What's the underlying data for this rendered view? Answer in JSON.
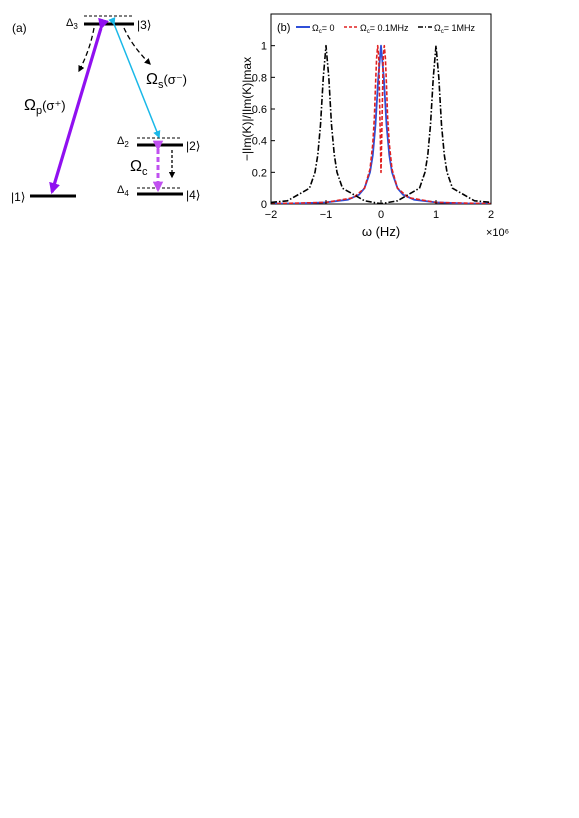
{
  "panel_a": {
    "label": "(a)",
    "levels": {
      "l1": "|1⟩",
      "l2": "|2⟩",
      "l3": "|3⟩",
      "l4": "|4⟩"
    },
    "detunings": {
      "d2": "Δ",
      "d2_sub": "2",
      "d3": "Δ",
      "d3_sub": "3",
      "d4": "Δ",
      "d4_sub": "4"
    },
    "fields": {
      "probe": "Ω",
      "probe_sub": "p",
      "probe_pol": "(σ⁺)",
      "signal": "Ω",
      "signal_sub": "s",
      "signal_pol": "(σ⁻)",
      "control": "Ω",
      "control_sub": "c"
    },
    "colors": {
      "probe": "#9010f0",
      "signal": "#1ab8e8",
      "control": "#c050f0"
    }
  },
  "panel_b": {
    "label": "(b)",
    "xlabel": "ω (Hz)",
    "ylabel": "−|Im(K)|/|Im(K)|max",
    "x_multiplier": "×10⁶",
    "xticks": [
      "−2",
      "−1",
      "0",
      "1",
      "2"
    ],
    "yticks": [
      "0",
      "0.2",
      "0.4",
      "0.6",
      "0.8",
      "1"
    ],
    "legend": [
      {
        "sym": "Ω",
        "sub": "c",
        "value": "= 0"
      },
      {
        "sym": "Ω",
        "sub": "c",
        "value": "= 0.1MHz"
      },
      {
        "sym": "Ω",
        "sub": "c",
        "value": "= 1MHz"
      }
    ]
  },
  "chart_data": {
    "type": "line",
    "xlabel": "ω (Hz)",
    "ylabel": "−|Im(K)|/|Im(K)|max",
    "xlim": [
      -2,
      2
    ],
    "ylim": [
      0,
      1.2
    ],
    "grid": false,
    "legend_position": "top",
    "x_scale_note": "×10⁶",
    "series": [
      {
        "name": "Ωc = 0",
        "color": "#2f4fd8",
        "dash": "solid",
        "x": [
          -2,
          -1.5,
          -1,
          -0.6,
          -0.4,
          -0.3,
          -0.2,
          -0.15,
          -0.1,
          -0.05,
          0,
          0.05,
          0.1,
          0.15,
          0.2,
          0.3,
          0.4,
          0.6,
          1,
          1.5,
          2
        ],
        "y": [
          0.002,
          0.004,
          0.01,
          0.027,
          0.059,
          0.1,
          0.2,
          0.308,
          0.5,
          0.8,
          1,
          0.8,
          0.5,
          0.308,
          0.2,
          0.1,
          0.059,
          0.027,
          0.01,
          0.004,
          0.002
        ]
      },
      {
        "name": "Ωc = 0.1MHz",
        "color": "#e02020",
        "dash": "dashed",
        "x": [
          -2,
          -1,
          -0.5,
          -0.3,
          -0.2,
          -0.15,
          -0.12,
          -0.1,
          -0.08,
          -0.06,
          -0.04,
          -0.02,
          0,
          0.02,
          0.04,
          0.06,
          0.08,
          0.1,
          0.12,
          0.15,
          0.2,
          0.3,
          0.5,
          1,
          2
        ],
        "y": [
          0.002,
          0.01,
          0.04,
          0.1,
          0.22,
          0.38,
          0.55,
          0.75,
          0.92,
          1,
          0.92,
          0.55,
          0.2,
          0.55,
          0.92,
          1,
          0.92,
          0.75,
          0.55,
          0.38,
          0.22,
          0.1,
          0.04,
          0.01,
          0.002
        ]
      },
      {
        "name": "Ωc = 1MHz",
        "color": "#000000",
        "dash": "dashdot",
        "x": [
          -2,
          -1.7,
          -1.5,
          -1.3,
          -1.2,
          -1.15,
          -1.1,
          -1.05,
          -1,
          -0.95,
          -0.9,
          -0.85,
          -0.8,
          -0.7,
          -0.5,
          -0.3,
          0,
          0.3,
          0.5,
          0.7,
          0.8,
          0.85,
          0.9,
          0.95,
          1,
          1.05,
          1.1,
          1.15,
          1.2,
          1.3,
          1.5,
          1.7,
          2
        ],
        "y": [
          0.01,
          0.02,
          0.06,
          0.1,
          0.2,
          0.31,
          0.5,
          0.8,
          1,
          0.8,
          0.5,
          0.31,
          0.2,
          0.1,
          0.06,
          0.02,
          0.002,
          0.02,
          0.06,
          0.1,
          0.2,
          0.31,
          0.5,
          0.8,
          1,
          0.8,
          0.5,
          0.31,
          0.2,
          0.1,
          0.06,
          0.02,
          0.01
        ]
      }
    ]
  }
}
